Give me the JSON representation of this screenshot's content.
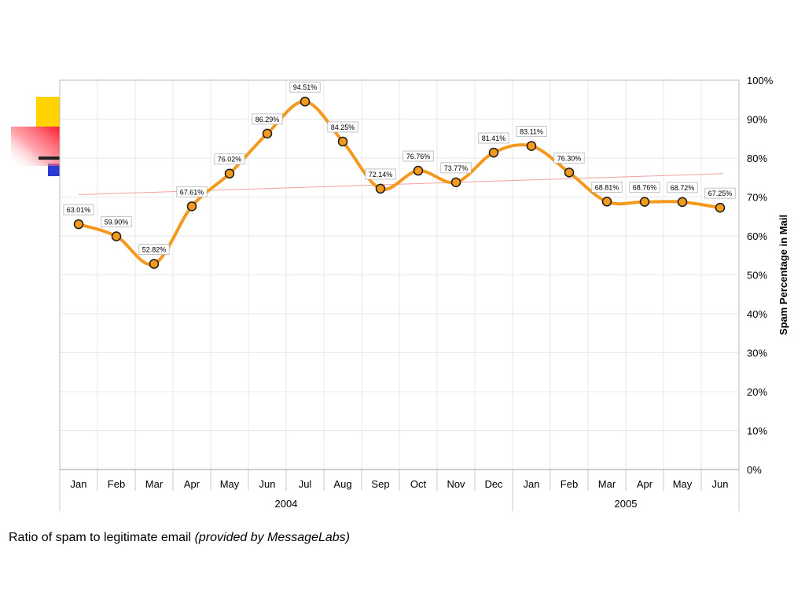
{
  "caption": {
    "text": "Ratio of spam to legitimate email",
    "source": "(provided by MessageLabs)"
  },
  "colors": {
    "line": "#f39a1e",
    "marker_fill": "#f39a1e",
    "marker_stroke": "#1a1a1a",
    "trend": "#f2a0a0",
    "grid": "#e9e9e9",
    "deco_yellow": "#ffd200",
    "deco_red": "#ff1a2e",
    "deco_blue": "#2b3bd1"
  },
  "chart_data": {
    "type": "line",
    "ylabel": "Spam Percentage in Mail",
    "ylim": [
      0,
      100
    ],
    "y_ticks": [
      "0%",
      "10%",
      "20%",
      "30%",
      "40%",
      "50%",
      "60%",
      "70%",
      "80%",
      "90%",
      "100%"
    ],
    "categories": [
      "Jan",
      "Feb",
      "Mar",
      "Apr",
      "May",
      "Jun",
      "Jul",
      "Aug",
      "Sep",
      "Oct",
      "Nov",
      "Dec",
      "Jan",
      "Feb",
      "Mar",
      "Apr",
      "May",
      "Jun"
    ],
    "year_groups": [
      {
        "label": "2004",
        "count": 12
      },
      {
        "label": "2005",
        "count": 6
      }
    ],
    "series": [
      {
        "values": [
          63.01,
          59.9,
          52.82,
          67.61,
          76.02,
          86.29,
          94.51,
          84.25,
          72.14,
          76.76,
          73.77,
          81.41,
          83.11,
          76.3,
          68.81,
          68.76,
          68.72,
          67.25
        ],
        "data_labels": [
          "63.01%",
          "59.90%",
          "52.82%",
          "67.61%",
          "76.02%",
          "86.29%",
          "94.51%",
          "84.25%",
          "72.14%",
          "76.76%",
          "73.77%",
          "81.41%",
          "83.11%",
          "76.30%",
          "68.81%",
          "68.76%",
          "68.72%",
          "67.25%"
        ]
      }
    ],
    "trendline": {
      "start": 70.6,
      "end": 76.0
    },
    "grid": true,
    "legend": "none"
  }
}
